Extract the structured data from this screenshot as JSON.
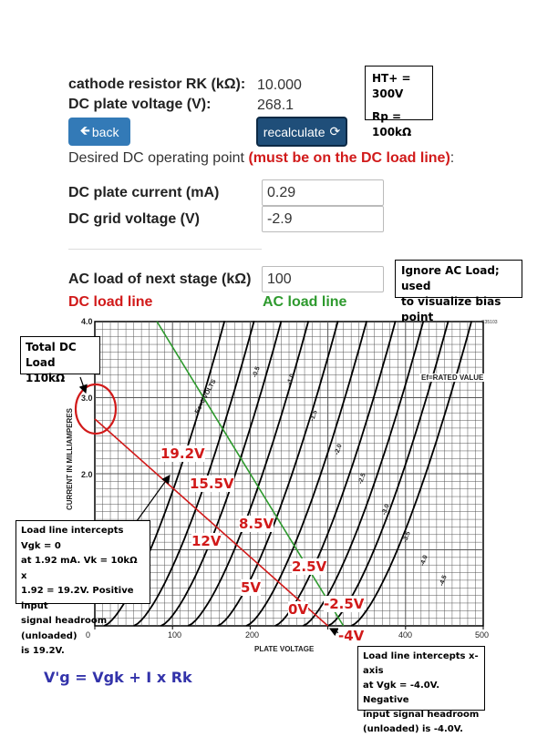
{
  "form": {
    "rk_label": "cathode resistor RK (kΩ):",
    "rk_value": "10.000",
    "vp_label": "DC plate voltage (V):",
    "vp_value": "268.1",
    "back_label": "back",
    "recalc_label": "recalculate",
    "desired_prefix": "Desired DC operating point ",
    "desired_warning": "(must be on the DC load line)",
    "desired_suffix": ":",
    "current_label": "DC plate current (mA)",
    "current_value": "0.29",
    "grid_label": "DC grid voltage (V)",
    "grid_value": "-2.9",
    "ac_label": "AC load of next stage (kΩ)",
    "ac_value": "100",
    "dc_line_label": "DC load line",
    "ac_line_label": "AC load line"
  },
  "colors": {
    "button": "#337ab7",
    "recalc_button": "#1f4e79",
    "dc_line": "#d11a1a",
    "ac_line": "#2e9a2e"
  },
  "notes": {
    "ht": [
      "HT+ = 300V",
      "Rp = 100kΩ"
    ],
    "ignore": [
      "Ignore AC Load; used",
      "to visualize bias point"
    ],
    "total_dc": [
      "Total DC Load",
      "110kΩ"
    ],
    "intercept_zero": [
      "Load line intercepts Vgk = 0",
      "at 1.92 mA. Vk = 10kΩ x",
      "1.92 = 19.2V. Positive input",
      "signal headroom (unloaded)",
      "is 19.2V."
    ],
    "intercept_neg": [
      "Load line intercepts x-axis",
      "at Vgk = -4.0V. Negative",
      "input signal headroom",
      "(unloaded) is -4.0V."
    ],
    "formula": "V'g = Vgk + I x Rk"
  },
  "chart_labels": {
    "v192": "19.2V",
    "v155": "15.5V",
    "v85": "8.5V",
    "v12": "12V",
    "v25": "2.5V",
    "v5": "5V",
    "v0": "0V",
    "vm25": "-2.5V",
    "vm4": "-4V"
  },
  "chart_data": {
    "type": "line",
    "ylabel": "CURRENT IN MILLIAMPERES",
    "xlabel": "PLATE VOLTAGE",
    "xlim": [
      0,
      500
    ],
    "ylim": [
      0,
      4.0
    ],
    "x_ticks": [
      "0",
      "100",
      "200",
      "300",
      "400",
      "500"
    ],
    "y_ticks": [
      "2.0",
      "3.0",
      "4.0"
    ],
    "code": "C35103",
    "annotation": "Ef=RATED VALUE",
    "curve_labels": [
      "Ec=0 VOLTS",
      "-0.5",
      "-1.0",
      "-1.5",
      "-2.0",
      "-2.5",
      "-3.0",
      "-3.5",
      "-4.0",
      "-4.5"
    ],
    "series": [
      {
        "name": "DC load line",
        "x": [
          0,
          300
        ],
        "y": [
          2.72,
          0
        ]
      },
      {
        "name": "AC load line",
        "x": [
          80,
          320
        ],
        "y": [
          4.0,
          0
        ]
      }
    ]
  }
}
